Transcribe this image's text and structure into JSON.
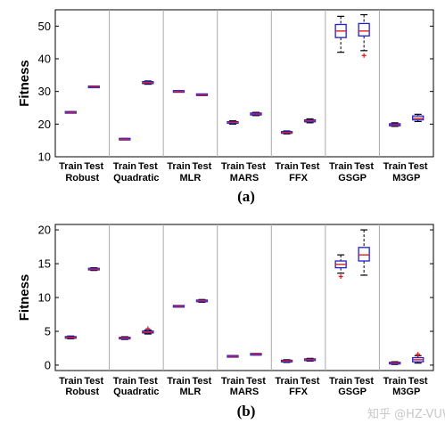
{
  "chart_data": [
    {
      "type": "box",
      "caption": "(a)",
      "ylabel": "Fitness",
      "ylim": [
        10,
        55
      ],
      "yticks": [
        10,
        20,
        30,
        40,
        50
      ],
      "split_labels": [
        "Train",
        "Test"
      ],
      "groups": [
        "Robust",
        "Quadratic",
        "MLR",
        "MARS",
        "FFX",
        "GSGP",
        "M3GP"
      ],
      "series": [
        {
          "group": "Robust",
          "split": "Train",
          "whislo": 23.4,
          "q1": 23.45,
          "med": 23.6,
          "q3": 23.75,
          "whishi": 23.8,
          "fliers": []
        },
        {
          "group": "Robust",
          "split": "Test",
          "whislo": 31.2,
          "q1": 31.25,
          "med": 31.4,
          "q3": 31.55,
          "whishi": 31.6,
          "fliers": []
        },
        {
          "group": "Quadratic",
          "split": "Train",
          "whislo": 15.2,
          "q1": 15.25,
          "med": 15.4,
          "q3": 15.55,
          "whishi": 15.6,
          "fliers": []
        },
        {
          "group": "Quadratic",
          "split": "Test",
          "whislo": 32.2,
          "q1": 32.4,
          "med": 32.7,
          "q3": 33.0,
          "whishi": 33.2,
          "fliers": []
        },
        {
          "group": "MLR",
          "split": "Train",
          "whislo": 29.8,
          "q1": 29.85,
          "med": 30.0,
          "q3": 30.15,
          "whishi": 30.2,
          "fliers": []
        },
        {
          "group": "MLR",
          "split": "Test",
          "whislo": 28.8,
          "q1": 28.85,
          "med": 29.0,
          "q3": 29.15,
          "whishi": 29.2,
          "fliers": []
        },
        {
          "group": "MARS",
          "split": "Train",
          "whislo": 20.0,
          "q1": 20.3,
          "med": 20.5,
          "q3": 20.7,
          "whishi": 21.0,
          "fliers": []
        },
        {
          "group": "MARS",
          "split": "Test",
          "whislo": 22.6,
          "q1": 22.8,
          "med": 23.1,
          "q3": 23.4,
          "whishi": 23.6,
          "fliers": []
        },
        {
          "group": "FFX",
          "split": "Train",
          "whislo": 17.0,
          "q1": 17.2,
          "med": 17.4,
          "q3": 17.7,
          "whishi": 17.9,
          "fliers": []
        },
        {
          "group": "FFX",
          "split": "Test",
          "whislo": 20.4,
          "q1": 20.7,
          "med": 21.0,
          "q3": 21.3,
          "whishi": 21.6,
          "fliers": []
        },
        {
          "group": "GSGP",
          "split": "Train",
          "whislo": 42.0,
          "q1": 46.5,
          "med": 48.5,
          "q3": 50.5,
          "whishi": 53.0,
          "fliers": []
        },
        {
          "group": "GSGP",
          "split": "Test",
          "whislo": 42.5,
          "q1": 47.0,
          "med": 48.5,
          "q3": 50.8,
          "whishi": 53.5,
          "fliers": [
            41.0
          ]
        },
        {
          "group": "M3GP",
          "split": "Train",
          "whislo": 19.3,
          "q1": 19.5,
          "med": 19.8,
          "q3": 20.1,
          "whishi": 20.4,
          "fliers": []
        },
        {
          "group": "M3GP",
          "split": "Test",
          "whislo": 20.8,
          "q1": 21.3,
          "med": 21.8,
          "q3": 22.5,
          "whishi": 23.0,
          "fliers": []
        }
      ]
    },
    {
      "type": "box",
      "caption": "(b)",
      "ylabel": "Fitness",
      "ylim": [
        -0.8,
        20.8
      ],
      "yticks": [
        0,
        5,
        10,
        15,
        20
      ],
      "split_labels": [
        "Train",
        "Test"
      ],
      "groups": [
        "Robust",
        "Quadratic",
        "MLR",
        "MARS",
        "FFX",
        "GSGP",
        "M3GP"
      ],
      "series": [
        {
          "group": "Robust",
          "split": "Train",
          "whislo": 3.9,
          "q1": 4.0,
          "med": 4.1,
          "q3": 4.2,
          "whishi": 4.3,
          "fliers": []
        },
        {
          "group": "Robust",
          "split": "Test",
          "whislo": 14.0,
          "q1": 14.1,
          "med": 14.2,
          "q3": 14.3,
          "whishi": 14.4,
          "fliers": []
        },
        {
          "group": "Quadratic",
          "split": "Train",
          "whislo": 3.8,
          "q1": 3.9,
          "med": 4.0,
          "q3": 4.1,
          "whishi": 4.2,
          "fliers": []
        },
        {
          "group": "Quadratic",
          "split": "Test",
          "whislo": 4.6,
          "q1": 4.75,
          "med": 4.9,
          "q3": 5.05,
          "whishi": 5.2,
          "fliers": [
            5.4
          ]
        },
        {
          "group": "MLR",
          "split": "Train",
          "whislo": 8.6,
          "q1": 8.65,
          "med": 8.7,
          "q3": 8.75,
          "whishi": 8.8,
          "fliers": []
        },
        {
          "group": "MLR",
          "split": "Test",
          "whislo": 9.3,
          "q1": 9.4,
          "med": 9.5,
          "q3": 9.6,
          "whishi": 9.7,
          "fliers": []
        },
        {
          "group": "MARS",
          "split": "Train",
          "whislo": 1.2,
          "q1": 1.25,
          "med": 1.3,
          "q3": 1.35,
          "whishi": 1.4,
          "fliers": []
        },
        {
          "group": "MARS",
          "split": "Test",
          "whislo": 1.5,
          "q1": 1.55,
          "med": 1.6,
          "q3": 1.65,
          "whishi": 1.7,
          "fliers": []
        },
        {
          "group": "FFX",
          "split": "Train",
          "whislo": 0.4,
          "q1": 0.5,
          "med": 0.6,
          "q3": 0.7,
          "whishi": 0.8,
          "fliers": []
        },
        {
          "group": "FFX",
          "split": "Test",
          "whislo": 0.6,
          "q1": 0.7,
          "med": 0.8,
          "q3": 0.9,
          "whishi": 1.0,
          "fliers": []
        },
        {
          "group": "GSGP",
          "split": "Train",
          "whislo": 13.6,
          "q1": 14.4,
          "med": 14.9,
          "q3": 15.4,
          "whishi": 16.3,
          "fliers": [
            13.1
          ]
        },
        {
          "group": "GSGP",
          "split": "Test",
          "whislo": 13.3,
          "q1": 15.4,
          "med": 16.3,
          "q3": 17.4,
          "whishi": 20.0,
          "fliers": []
        },
        {
          "group": "M3GP",
          "split": "Train",
          "whislo": 0.1,
          "q1": 0.2,
          "med": 0.3,
          "q3": 0.4,
          "whishi": 0.5,
          "fliers": []
        },
        {
          "group": "M3GP",
          "split": "Test",
          "whislo": 0.3,
          "q1": 0.5,
          "med": 0.8,
          "q3": 1.1,
          "whishi": 1.4,
          "fliers": [
            1.6
          ]
        }
      ]
    }
  ],
  "colors": {
    "box": "#1f1fd0",
    "median": "#dd2020",
    "flier": "#dd2020",
    "whisker": "#000000",
    "separator": "#aaaaaa"
  },
  "watermark": "知乎 @HZ-VUW"
}
